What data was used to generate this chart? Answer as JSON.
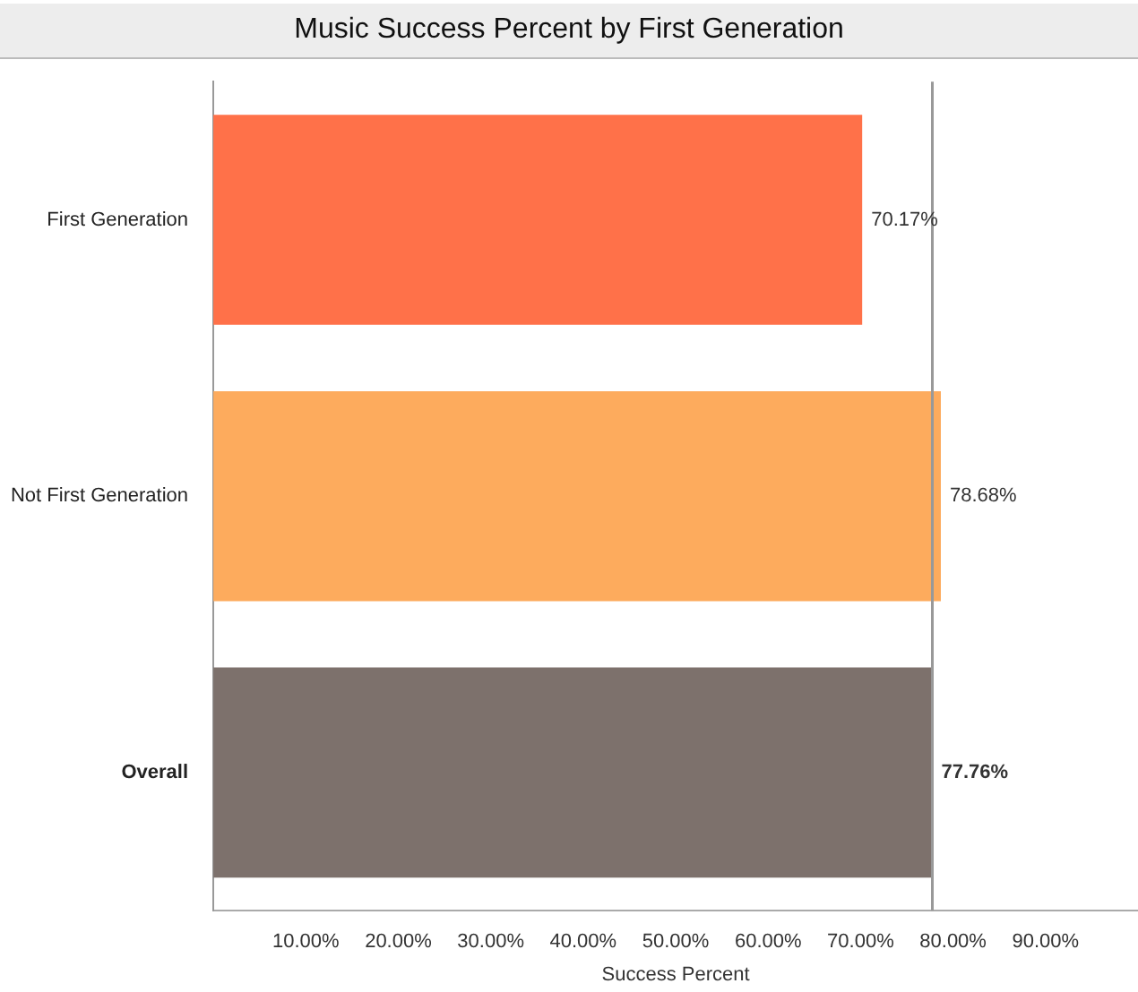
{
  "chart_data": {
    "type": "bar",
    "orientation": "horizontal",
    "title": "Music Success Percent by First Generation",
    "xlabel": "Success Percent",
    "categories": [
      "First Generation",
      "Not First Generation",
      "Overall"
    ],
    "values": [
      70.17,
      78.68,
      77.76
    ],
    "colors": [
      "#ff7149",
      "#fdab5d",
      "#7d716c"
    ],
    "value_labels": [
      "70.17%",
      "78.68%",
      "77.76%"
    ],
    "xlim": [
      0,
      100
    ],
    "xticks": [
      {
        "value": 10,
        "label": "10.00%"
      },
      {
        "value": 20,
        "label": "20.00%"
      },
      {
        "value": 30,
        "label": "30.00%"
      },
      {
        "value": 40,
        "label": "40.00%"
      },
      {
        "value": 50,
        "label": "50.00%"
      },
      {
        "value": 60,
        "label": "60.00%"
      },
      {
        "value": 70,
        "label": "70.00%"
      },
      {
        "value": 80,
        "label": "80.00%"
      },
      {
        "value": 90,
        "label": "90.00%"
      }
    ],
    "ref_lines": [
      {
        "axis": "x",
        "value": 77.76,
        "color": "#999999"
      }
    ],
    "grid": false,
    "legend": false
  }
}
